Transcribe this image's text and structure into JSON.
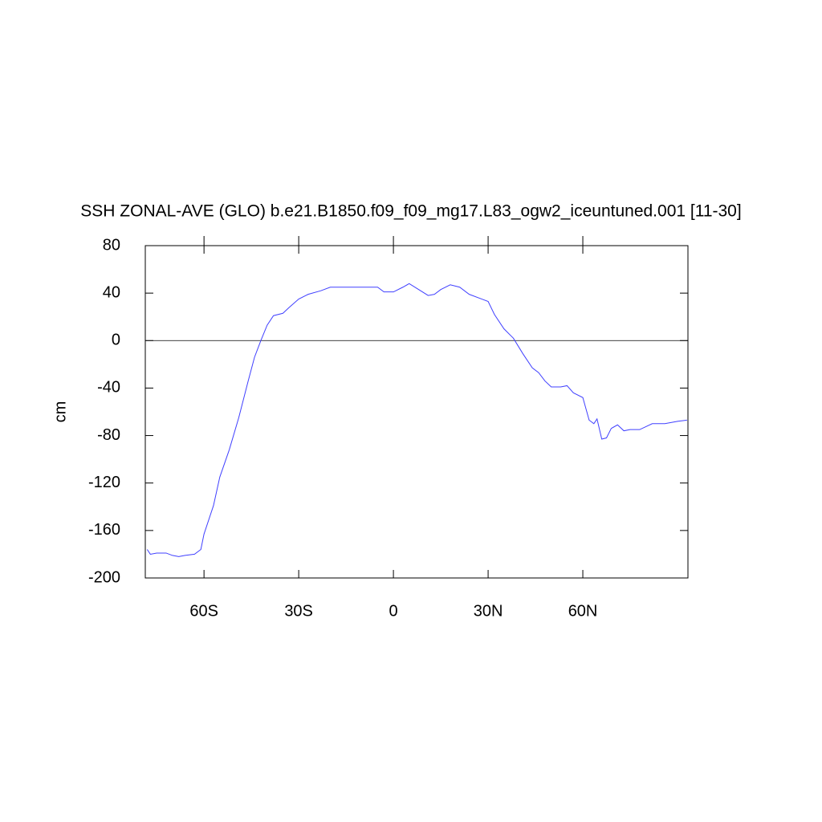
{
  "chart_data": {
    "type": "line",
    "title": "SSH ZONAL-AVE (GLO) b.e21.B1850.f09_f09_mg17.L83_ogw2_iceuntuned.001 [11-30]",
    "y_label": "cm",
    "x": [
      -78,
      -77,
      -75,
      -72,
      -70,
      -68,
      -66,
      -63,
      -61,
      -60,
      -57,
      -55,
      -52,
      -49,
      -46,
      -44,
      -42,
      -40,
      -38,
      -35,
      -33,
      -30,
      -27,
      -23,
      -20,
      -15,
      -10,
      -5,
      -3,
      0,
      3,
      5,
      8,
      11,
      13,
      15,
      18,
      21,
      24,
      28,
      30,
      32,
      35,
      38,
      41,
      44,
      46,
      48,
      50,
      53,
      55,
      57,
      60,
      62,
      63.5,
      64.5,
      66,
      67.5,
      69,
      71,
      73,
      75,
      78,
      82,
      86,
      90,
      93
    ],
    "series": [
      {
        "name": "SSH",
        "color": "#4040ff",
        "values": [
          -176,
          -180,
          -179,
          -179,
          -181,
          -182,
          -181,
          -180,
          -176,
          -163,
          -139,
          -115,
          -92,
          -65,
          -34,
          -14,
          0,
          13,
          21,
          23,
          28,
          35,
          39,
          42,
          45,
          45,
          45,
          45,
          41,
          41,
          45,
          48,
          43,
          38,
          39,
          43,
          47,
          45,
          39,
          35,
          33,
          22,
          10,
          2,
          -11,
          -23,
          -27,
          -34,
          -39,
          -39,
          -38,
          -44,
          -48,
          -67,
          -70,
          -66,
          -83,
          -82,
          -74,
          -71,
          -76,
          -75,
          -75,
          -70,
          -70,
          -68,
          -67
        ]
      }
    ],
    "xlim": [
      -78.6,
      93.3
    ],
    "ylim": [
      -200,
      80
    ],
    "xticks": [
      {
        "value": -60,
        "label": "60S"
      },
      {
        "value": -30,
        "label": "30S"
      },
      0,
      {
        "value": 30,
        "label": "30N"
      },
      {
        "value": 60,
        "label": "60N"
      }
    ],
    "yticks": [
      -200,
      -160,
      -120,
      -80,
      -40,
      0,
      40,
      80
    ],
    "reference_line": 0
  }
}
